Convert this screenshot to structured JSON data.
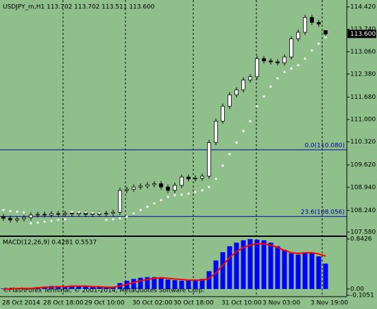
{
  "chart_data": [
    {
      "type": "candlestick",
      "title": "USDJPY_m,H1 113.702 113.702 113.511 113.600",
      "categories": [
        "28 Oct 2014",
        null,
        null,
        null,
        null,
        null,
        "28 Oct 18:00",
        null,
        null,
        null,
        null,
        null,
        "29 Oct 10:00",
        null,
        null,
        null,
        null,
        null,
        null,
        "30 Oct 02:00",
        null,
        null,
        null,
        null,
        null,
        "30 Oct 18:00",
        null,
        null,
        null,
        null,
        null,
        null,
        "31 Oct 10:00",
        null,
        null,
        null,
        null,
        null,
        "3 Nov 03:00",
        null,
        null,
        null,
        null,
        null,
        null,
        "3 Nov 19:00",
        null,
        null
      ],
      "open": [
        108.05,
        108.0,
        107.95,
        107.98,
        108.02,
        108.1,
        108.12,
        108.1,
        108.14,
        108.12,
        108.15,
        108.13,
        108.16,
        108.12,
        108.14,
        108.13,
        108.15,
        108.18,
        108.85,
        108.88,
        108.95,
        108.98,
        109.02,
        109.05,
        108.95,
        108.85,
        109.0,
        109.25,
        109.2,
        109.22,
        109.28,
        110.3,
        110.95,
        111.4,
        111.75,
        111.9,
        112.2,
        112.3,
        112.85,
        112.78,
        112.75,
        112.72,
        112.9,
        113.45,
        113.65,
        114.1,
        113.95,
        113.702
      ],
      "high": [
        108.13,
        108.08,
        108.06,
        108.1,
        108.18,
        108.2,
        108.2,
        108.22,
        108.22,
        108.23,
        108.23,
        108.24,
        108.24,
        108.22,
        108.22,
        108.23,
        108.26,
        108.93,
        108.96,
        109.03,
        109.06,
        109.1,
        109.13,
        109.13,
        109.03,
        109.08,
        109.33,
        109.33,
        109.3,
        109.36,
        110.38,
        111.03,
        111.48,
        111.83,
        111.98,
        112.28,
        112.38,
        112.93,
        112.93,
        112.86,
        112.83,
        112.98,
        113.53,
        113.73,
        114.18,
        114.18,
        114.03,
        113.702
      ],
      "low": [
        107.92,
        107.87,
        107.87,
        107.9,
        107.94,
        108.02,
        108.02,
        108.02,
        108.04,
        108.04,
        108.05,
        108.05,
        108.04,
        108.04,
        108.05,
        108.05,
        108.07,
        108.1,
        108.77,
        108.8,
        108.87,
        108.9,
        108.94,
        108.87,
        108.77,
        108.77,
        108.92,
        109.12,
        109.12,
        109.14,
        109.2,
        110.22,
        110.87,
        111.32,
        111.67,
        111.82,
        112.12,
        112.22,
        112.7,
        112.67,
        112.64,
        112.64,
        112.82,
        113.37,
        113.57,
        113.87,
        113.82,
        113.511
      ],
      "close": [
        108.0,
        107.95,
        107.98,
        108.02,
        108.1,
        108.12,
        108.1,
        108.14,
        108.12,
        108.15,
        108.13,
        108.16,
        108.12,
        108.14,
        108.13,
        108.15,
        108.18,
        108.85,
        108.88,
        108.95,
        108.98,
        109.02,
        109.05,
        108.95,
        108.85,
        109.0,
        109.25,
        109.2,
        109.22,
        109.28,
        110.3,
        110.95,
        111.4,
        111.75,
        111.9,
        112.2,
        112.3,
        112.85,
        112.78,
        112.75,
        112.72,
        112.9,
        113.45,
        113.65,
        114.1,
        113.95,
        113.9,
        113.6
      ],
      "sar": {
        "color": "#ffffff",
        "values": [
          108.25,
          108.22,
          108.2,
          108.18,
          107.85,
          107.87,
          107.9,
          107.92,
          107.95,
          107.97,
          108.2,
          108.19,
          108.18,
          108.17,
          108.16,
          107.95,
          107.97,
          108.0,
          108.05,
          108.15,
          108.25,
          108.35,
          108.45,
          108.55,
          108.65,
          108.7,
          108.72,
          108.75,
          108.8,
          108.85,
          108.95,
          109.2,
          109.6,
          109.95,
          110.3,
          110.65,
          110.95,
          111.4,
          111.7,
          112.0,
          112.25,
          112.45,
          112.55,
          112.65,
          112.85,
          113.1,
          113.3,
          113.5
        ]
      },
      "ylim": [
        107.476,
        114.63
      ],
      "yticks": [
        {
          "value": 114.42,
          "label": "114.420"
        },
        {
          "value": 113.74,
          "label": "113.740"
        },
        {
          "value": 113.06,
          "label": "113.060"
        },
        {
          "value": 112.38,
          "label": "112.380"
        },
        {
          "value": 111.68,
          "label": "111.680"
        },
        {
          "value": 111.0,
          "label": "111.000"
        },
        {
          "value": 110.32,
          "label": "110.320"
        },
        {
          "value": 109.62,
          "label": "109.620"
        },
        {
          "value": 108.94,
          "label": "108.940"
        },
        {
          "value": 108.24,
          "label": "108.240"
        },
        {
          "value": 107.58,
          "label": "107.580"
        }
      ],
      "hlines": [
        {
          "value": 110.08,
          "label": "0.0(110.080)",
          "color": "#0000a0"
        },
        {
          "value": 108.056,
          "label": "23.6(108.056)",
          "color": "#0000a0"
        }
      ],
      "last_price": {
        "value": 113.6,
        "label": "113.600"
      },
      "footer": "©FlashForex Terminal, © 2001-2014, MetaQuotes Software Corp."
    },
    {
      "type": "macd",
      "title": "MACD(12,26,9) 0.4281 0.5537",
      "series": [
        {
          "color": "#0000ff",
          "values": [
            0.01,
            0.01,
            0.01,
            0.01,
            0.02,
            0.03,
            0.04,
            0.05,
            0.05,
            0.05,
            0.05,
            0.05,
            0.04,
            0.04,
            0.03,
            0.03,
            0.03,
            0.1,
            0.14,
            0.17,
            0.19,
            0.2,
            0.2,
            0.19,
            0.16,
            0.15,
            0.14,
            0.15,
            0.16,
            0.17,
            0.3,
            0.48,
            0.62,
            0.72,
            0.78,
            0.82,
            0.84,
            0.83,
            0.82,
            0.78,
            0.72,
            0.66,
            0.6,
            0.58,
            0.6,
            0.6,
            0.55,
            0.4281
          ]
        },
        {
          "color": "#ff0000",
          "values": [
            0.0,
            0.0,
            0.01,
            0.01,
            0.01,
            0.02,
            0.03,
            0.03,
            0.04,
            0.04,
            0.05,
            0.05,
            0.05,
            0.04,
            0.04,
            0.03,
            0.03,
            0.05,
            0.08,
            0.11,
            0.14,
            0.16,
            0.18,
            0.19,
            0.18,
            0.17,
            0.16,
            0.15,
            0.15,
            0.15,
            0.18,
            0.27,
            0.4,
            0.53,
            0.63,
            0.7,
            0.74,
            0.76,
            0.76,
            0.74,
            0.7,
            0.65,
            0.61,
            0.6,
            0.61,
            0.61,
            0.59,
            0.5537
          ]
        }
      ],
      "ylim": [
        -0.1051,
        0.8426
      ],
      "yticks": [
        {
          "value": 0.8426,
          "label": "0.8426"
        },
        {
          "value": 0,
          "label": "0.00"
        },
        {
          "value": -0.1051,
          "label": "-0.1051"
        }
      ]
    }
  ]
}
